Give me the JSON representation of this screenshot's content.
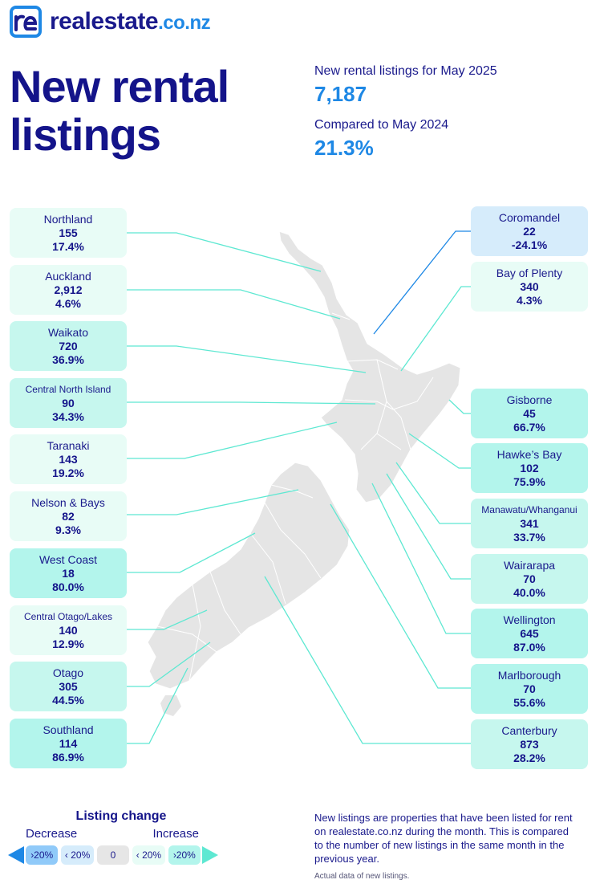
{
  "brand": {
    "name": "realestate",
    "tld": ".co.nz",
    "logo_letter": "re"
  },
  "title_line1": "New rental",
  "title_line2": "listings",
  "kpis": {
    "current_label": "New rental listings for May 2025",
    "current_value": "7,187",
    "compare_label": "Compared to May 2024",
    "compare_value": "21.3%"
  },
  "regions_left": [
    {
      "name": "Northland",
      "count": "155",
      "pct": "17.4%"
    },
    {
      "name": "Auckland",
      "count": "2,912",
      "pct": "4.6%"
    },
    {
      "name": "Waikato",
      "count": "720",
      "pct": "36.9%"
    },
    {
      "name": "Central North Island",
      "count": "90",
      "pct": "34.3%"
    },
    {
      "name": "Taranaki",
      "count": "143",
      "pct": "19.2%"
    },
    {
      "name": "Nelson & Bays",
      "count": "82",
      "pct": "9.3%"
    },
    {
      "name": "West Coast",
      "count": "18",
      "pct": "80.0%"
    },
    {
      "name": "Central Otago/Lakes",
      "count": "140",
      "pct": "12.9%"
    },
    {
      "name": "Otago",
      "count": "305",
      "pct": "44.5%"
    },
    {
      "name": "Southland",
      "count": "114",
      "pct": "86.9%"
    }
  ],
  "regions_right": [
    {
      "name": "Coromandel",
      "count": "22",
      "pct": "-24.1%"
    },
    {
      "name": "Bay of Plenty",
      "count": "340",
      "pct": "4.3%"
    },
    {
      "name": "Gisborne",
      "count": "45",
      "pct": "66.7%"
    },
    {
      "name": "Hawke’s Bay",
      "count": "102",
      "pct": "75.9%"
    },
    {
      "name": "Manawatu/Whanganui",
      "count": "341",
      "pct": "33.7%"
    },
    {
      "name": "Wairarapa",
      "count": "70",
      "pct": "40.0%"
    },
    {
      "name": "Wellington",
      "count": "645",
      "pct": "87.0%"
    },
    {
      "name": "Marlborough",
      "count": "70",
      "pct": "55.6%"
    },
    {
      "name": "Canterbury",
      "count": "873",
      "pct": "28.2%"
    }
  ],
  "legend": {
    "title": "Listing change",
    "decrease": "Decrease",
    "increase": "Increase",
    "chips": [
      "›20%",
      "‹ 20%",
      "0",
      "‹ 20%",
      "›20%"
    ]
  },
  "note": "New listings are properties that have been listed for rent on realestate.co.nz during the month. This is compared to the number of new listings in the same month in the previous year.",
  "note_small": "Actual data of new listings.",
  "colors": {
    "navy": "#14148a",
    "accent_blue": "#1e88e5",
    "decrease_strong": "#90caf9",
    "decrease_light": "#d6ecfb",
    "increase_light": "#e8fcf6",
    "increase_strong": "#b3f5ec",
    "neutral": "#e6e6e6",
    "map_fill": "#e5e5e5",
    "leader_line": "#5ee8d2"
  }
}
